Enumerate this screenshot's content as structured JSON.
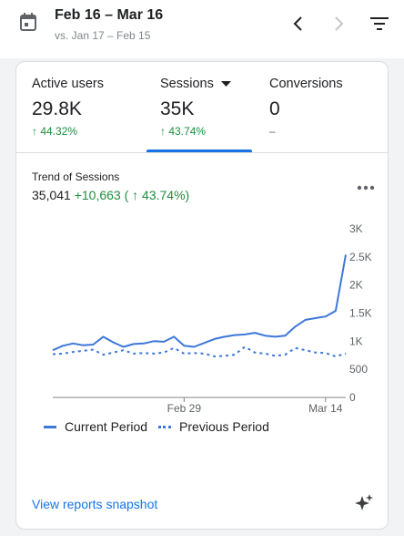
{
  "header": {
    "date_range": "Feb 16 – Mar 16",
    "compare_range": "vs. Jan 17 – Feb 15"
  },
  "metrics": [
    {
      "label": "Active users",
      "value": "29.8K",
      "change": "↑ 44.32%"
    },
    {
      "label": "Sessions",
      "value": "35K",
      "change": "↑ 43.74%"
    },
    {
      "label": "Conversions",
      "value": "0",
      "change": "–"
    }
  ],
  "trend": {
    "title": "Trend of Sessions",
    "total": "35,041",
    "delta": "+10,663 ( ↑ 43.74%)"
  },
  "chart_data": {
    "type": "line",
    "x": [
      "Feb 16",
      "Feb 17",
      "Feb 18",
      "Feb 19",
      "Feb 20",
      "Feb 21",
      "Feb 22",
      "Feb 23",
      "Feb 24",
      "Feb 25",
      "Feb 26",
      "Feb 27",
      "Feb 28",
      "Feb 29",
      "Mar 1",
      "Mar 2",
      "Mar 3",
      "Mar 4",
      "Mar 5",
      "Mar 6",
      "Mar 7",
      "Mar 8",
      "Mar 9",
      "Mar 10",
      "Mar 11",
      "Mar 12",
      "Mar 13",
      "Mar 14",
      "Mar 15",
      "Mar 16"
    ],
    "x_tick_labels": [
      "Feb 29",
      "Mar 14"
    ],
    "series": [
      {
        "name": "Current Period",
        "style": "solid",
        "values": [
          840,
          920,
          960,
          930,
          940,
          1080,
          980,
          900,
          950,
          960,
          1000,
          990,
          1080,
          920,
          900,
          970,
          1040,
          1080,
          1110,
          1120,
          1150,
          1100,
          1080,
          1100,
          1260,
          1380,
          1410,
          1440,
          1540,
          2540
        ]
      },
      {
        "name": "Previous Period",
        "style": "dotted",
        "values": [
          770,
          780,
          810,
          830,
          850,
          760,
          800,
          840,
          780,
          790,
          780,
          800,
          880,
          780,
          790,
          780,
          730,
          740,
          760,
          900,
          800,
          780,
          740,
          760,
          880,
          840,
          800,
          790,
          730,
          780
        ]
      }
    ],
    "ylim": [
      0,
      3000
    ],
    "y_ticks": [
      0,
      500,
      1000,
      1500,
      2000,
      2500,
      3000
    ],
    "y_tick_labels": [
      "0",
      "500",
      "1K",
      "1.5K",
      "2K",
      "2.5K",
      "3K"
    ],
    "color": "#3c78d8",
    "legend_position": "bottom"
  },
  "footer": {
    "link": "View reports snapshot"
  },
  "icons": {
    "calendar": "calendar-icon",
    "prev": "chevron-left-icon",
    "next": "chevron-right-icon",
    "filter": "filter-icon",
    "more": "more-horizontal-icon",
    "dropdown": "dropdown-arrow-icon",
    "insights": "sparkle-icon"
  }
}
